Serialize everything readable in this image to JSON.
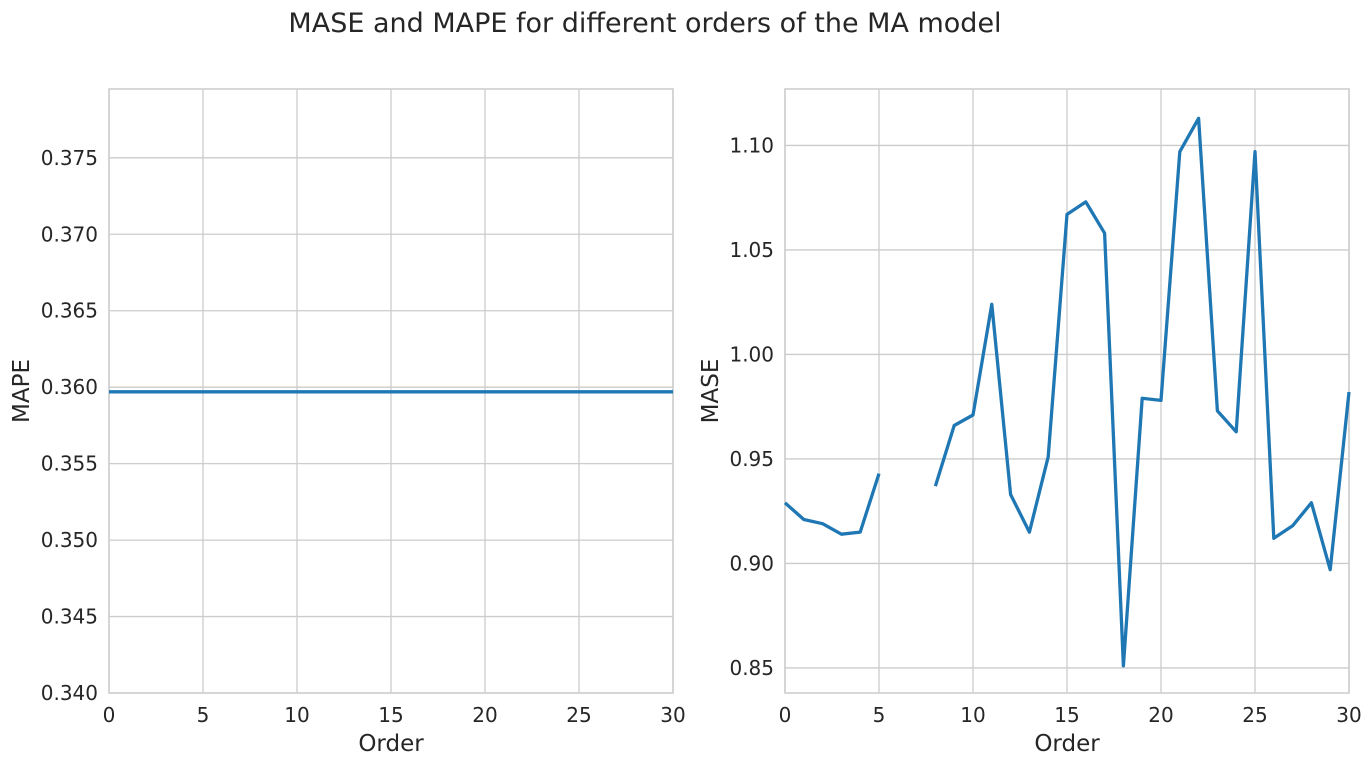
{
  "figure": {
    "title": "MASE and MAPE for different orders of the MA model"
  },
  "chart_data": [
    {
      "type": "line",
      "xlabel": "Order",
      "ylabel": "MAPE",
      "xlim": [
        0,
        30
      ],
      "ylim": [
        0.34,
        0.3795
      ],
      "xticks": [
        0,
        5,
        10,
        15,
        20,
        25,
        30
      ],
      "yticks": [
        0.34,
        0.345,
        0.35,
        0.355,
        0.36,
        0.365,
        0.37,
        0.375
      ],
      "xtick_labels": [
        "0",
        "5",
        "10",
        "15",
        "20",
        "25",
        "30"
      ],
      "ytick_labels": [
        "0.340",
        "0.345",
        "0.350",
        "0.355",
        "0.360",
        "0.365",
        "0.370",
        "0.375"
      ],
      "grid": true,
      "series": [
        {
          "color": "#1f77b4",
          "x": [
            0,
            1,
            2,
            3,
            4,
            5,
            6,
            7,
            8,
            9,
            10,
            11,
            12,
            13,
            14,
            15,
            16,
            17,
            18,
            19,
            20,
            21,
            22,
            23,
            24,
            25,
            26,
            27,
            28,
            29,
            30
          ],
          "values": [
            0.3597,
            0.3597,
            0.3597,
            0.3597,
            0.3597,
            0.3597,
            0.3597,
            0.3597,
            0.3597,
            0.3597,
            0.3597,
            0.3597,
            0.3597,
            0.3597,
            0.3597,
            0.3597,
            0.3597,
            0.3597,
            0.3597,
            0.3597,
            0.3597,
            0.3597,
            0.3597,
            0.3597,
            0.3597,
            0.3597,
            0.3597,
            0.3597,
            0.3597,
            0.3597,
            0.3597
          ]
        }
      ]
    },
    {
      "type": "line",
      "xlabel": "Order",
      "ylabel": "MASE",
      "xlim": [
        0,
        30
      ],
      "ylim": [
        0.838,
        1.127
      ],
      "xticks": [
        0,
        5,
        10,
        15,
        20,
        25,
        30
      ],
      "yticks": [
        0.85,
        0.9,
        0.95,
        1.0,
        1.05,
        1.1
      ],
      "xtick_labels": [
        "0",
        "5",
        "10",
        "15",
        "20",
        "25",
        "30"
      ],
      "ytick_labels": [
        "0.85",
        "0.90",
        "0.95",
        "1.00",
        "1.05",
        "1.10"
      ],
      "grid": true,
      "series": [
        {
          "color": "#1f77b4",
          "x": [
            0,
            1,
            2,
            3,
            4,
            5,
            6,
            7,
            8,
            9,
            10,
            11,
            12,
            13,
            14,
            15,
            16,
            17,
            18,
            19,
            20,
            21,
            22,
            23,
            24,
            25,
            26,
            27,
            28,
            29,
            30
          ],
          "values": [
            0.929,
            0.921,
            0.919,
            0.914,
            0.915,
            0.943,
            null,
            null,
            0.937,
            0.966,
            0.971,
            1.024,
            0.933,
            0.915,
            0.951,
            1.067,
            1.073,
            1.058,
            0.851,
            0.979,
            0.978,
            1.097,
            1.113,
            0.973,
            0.963,
            1.097,
            0.912,
            0.918,
            0.929,
            0.897,
            0.982
          ]
        }
      ]
    }
  ]
}
